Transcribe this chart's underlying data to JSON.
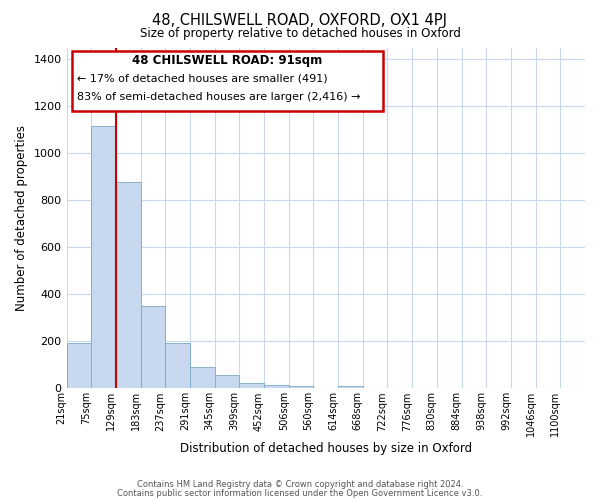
{
  "title": "48, CHILSWELL ROAD, OXFORD, OX1 4PJ",
  "subtitle": "Size of property relative to detached houses in Oxford",
  "xlabel": "Distribution of detached houses by size in Oxford",
  "ylabel": "Number of detached properties",
  "bar_color": "#c8d8ee",
  "bar_edge_color": "#7aaac8",
  "vline_color": "#cc0000",
  "categories": [
    "21sqm",
    "75sqm",
    "129sqm",
    "183sqm",
    "237sqm",
    "291sqm",
    "345sqm",
    "399sqm",
    "452sqm",
    "506sqm",
    "560sqm",
    "614sqm",
    "668sqm",
    "722sqm",
    "776sqm",
    "830sqm",
    "884sqm",
    "938sqm",
    "992sqm",
    "1046sqm",
    "1100sqm"
  ],
  "bar_heights": [
    195,
    1115,
    880,
    350,
    195,
    90,
    55,
    25,
    15,
    10,
    0,
    12,
    0,
    0,
    0,
    0,
    0,
    0,
    0,
    0,
    0
  ],
  "ylim": [
    0,
    1450
  ],
  "yticks": [
    0,
    200,
    400,
    600,
    800,
    1000,
    1200,
    1400
  ],
  "annotation_title": "48 CHILSWELL ROAD: 91sqm",
  "annotation_line1": "← 17% of detached houses are smaller (491)",
  "annotation_line2": "83% of semi-detached houses are larger (2,416) →",
  "footer1": "Contains HM Land Registry data © Crown copyright and database right 2024.",
  "footer2": "Contains public sector information licensed under the Open Government Licence v3.0.",
  "background_color": "#ffffff",
  "grid_color": "#c8d8ee"
}
